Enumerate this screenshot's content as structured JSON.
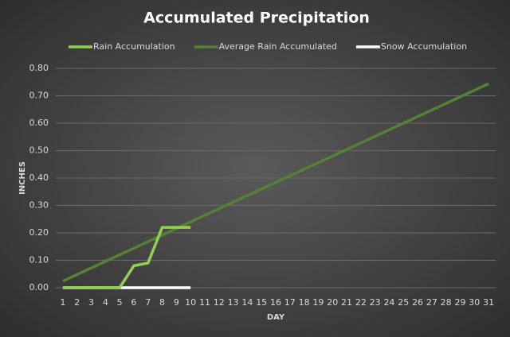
{
  "chart_data": {
    "type": "line",
    "title": "Accumulated Precipitation",
    "x_label": "DAY",
    "y_label": "INCHES",
    "categories": [
      "1",
      "2",
      "3",
      "4",
      "5",
      "6",
      "7",
      "8",
      "9",
      "10",
      "11",
      "12",
      "13",
      "14",
      "15",
      "16",
      "17",
      "18",
      "19",
      "20",
      "21",
      "22",
      "23",
      "24",
      "25",
      "26",
      "27",
      "28",
      "29",
      "30",
      "31"
    ],
    "series": [
      {
        "name": "Snow Accumulation",
        "color": "#ffffff",
        "values": [
          0,
          0,
          0,
          0,
          0,
          0,
          0,
          0,
          0,
          0,
          null,
          null,
          null,
          null,
          null,
          null,
          null,
          null,
          null,
          null,
          null,
          null,
          null,
          null,
          null,
          null,
          null,
          null,
          null,
          null,
          null
        ]
      },
      {
        "name": "Average Rain Accumulated",
        "color": "#548235",
        "values": [
          0.024,
          0.048,
          0.072,
          0.096,
          0.12,
          0.144,
          0.168,
          0.192,
          0.216,
          0.24,
          0.264,
          0.288,
          0.312,
          0.336,
          0.36,
          0.384,
          0.408,
          0.432,
          0.456,
          0.48,
          0.504,
          0.528,
          0.552,
          0.576,
          0.6,
          0.624,
          0.648,
          0.672,
          0.696,
          0.72,
          0.744
        ]
      },
      {
        "name": "Rain Accumulation",
        "color": "#92d050",
        "values": [
          0,
          0,
          0,
          0,
          0,
          0.08,
          0.09,
          0.22,
          0.22,
          0.22,
          null,
          null,
          null,
          null,
          null,
          null,
          null,
          null,
          null,
          null,
          null,
          null,
          null,
          null,
          null,
          null,
          null,
          null,
          null,
          null,
          null
        ]
      }
    ],
    "legend_order": [
      2,
      1,
      0
    ],
    "ylim": [
      0,
      0.8
    ],
    "yticks": [
      {
        "value": 0,
        "label": "0.00"
      },
      {
        "value": 0.1,
        "label": "0.10"
      },
      {
        "value": 0.2,
        "label": "0.20"
      },
      {
        "value": 0.3,
        "label": "0.30"
      },
      {
        "value": 0.4,
        "label": "0.40"
      },
      {
        "value": 0.5,
        "label": "0.50"
      },
      {
        "value": 0.6,
        "label": "0.60"
      },
      {
        "value": 0.7,
        "label": "0.70"
      },
      {
        "value": 0.8,
        "label": "0.80"
      }
    ],
    "grid": true
  }
}
